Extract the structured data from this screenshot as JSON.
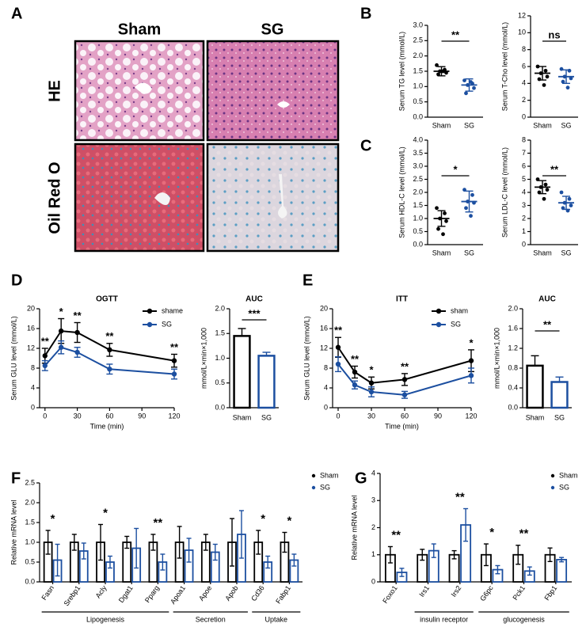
{
  "figure": {
    "panel_labels": [
      "A",
      "B",
      "C",
      "D",
      "E",
      "F",
      "G"
    ],
    "histology": {
      "columns": [
        "Sham",
        "SG"
      ],
      "rows": [
        "HE",
        "Oil Red O"
      ]
    }
  },
  "chart_data": [
    {
      "type": "dotplot",
      "y_label": "Serum TG level (mmol/L)",
      "categories": [
        "Sham",
        "SG"
      ],
      "colors": [
        "#000000",
        "#1c4fa0"
      ],
      "means": [
        1.5,
        1.05
      ],
      "errors": [
        0.15,
        0.2
      ],
      "points": [
        [
          1.7,
          1.55,
          1.5,
          1.45,
          1.4,
          1.5
        ],
        [
          1.2,
          1.1,
          1.05,
          0.95,
          0.78,
          1.15
        ]
      ],
      "significance": "**",
      "ylim": [
        0,
        3
      ],
      "yticks": [
        {
          "value": 0,
          "label": "0.0"
        },
        0.5,
        {
          "value": 1,
          "label": "1.0"
        },
        1.5,
        {
          "value": 2,
          "label": "2.0"
        },
        2.5,
        {
          "value": 3,
          "label": "3.0"
        }
      ]
    },
    {
      "type": "dotplot",
      "y_label": "Serum T-Cho level (mmol/L)",
      "categories": [
        "Sham",
        "SG"
      ],
      "colors": [
        "#000000",
        "#1c4fa0"
      ],
      "means": [
        5.2,
        4.8
      ],
      "errors": [
        0.8,
        0.8
      ],
      "points": [
        [
          6.0,
          5.5,
          5.2,
          4.8,
          4.5,
          3.8
        ],
        [
          5.7,
          5.5,
          4.8,
          4.6,
          4.2,
          3.5
        ]
      ],
      "significance": "ns",
      "ylim": [
        0,
        12
      ],
      "yticks": [
        0,
        2,
        4,
        6,
        8,
        10,
        12
      ]
    },
    {
      "type": "dotplot",
      "y_label": "Serum HDL-C level (mmol/L)",
      "categories": [
        "Sham",
        "SG"
      ],
      "colors": [
        "#000000",
        "#1c4fa0"
      ],
      "means": [
        1.0,
        1.65
      ],
      "errors": [
        0.3,
        0.4
      ],
      "points": [
        [
          1.4,
          1.2,
          1.0,
          0.9,
          0.6,
          0.4
        ],
        [
          2.1,
          1.9,
          1.65,
          1.6,
          1.4,
          1.1
        ]
      ],
      "significance": "*",
      "ylim": [
        0,
        4
      ],
      "yticks": [
        {
          "value": 0,
          "label": "0.0"
        },
        0.5,
        {
          "value": 1,
          "label": "1.0"
        },
        1.5,
        {
          "value": 2,
          "label": "2.0"
        },
        2.5,
        {
          "value": 3,
          "label": "3.0"
        },
        3.5,
        {
          "value": 4,
          "label": "4.0"
        }
      ]
    },
    {
      "type": "dotplot",
      "y_label": "Serum LDL-C level (mmol/L)",
      "categories": [
        "Sham",
        "SG"
      ],
      "colors": [
        "#000000",
        "#1c4fa0"
      ],
      "means": [
        4.4,
        3.2
      ],
      "errors": [
        0.5,
        0.5
      ],
      "points": [
        [
          5.0,
          4.6,
          4.4,
          4.2,
          4.0,
          3.5
        ],
        [
          4.0,
          3.5,
          3.2,
          3.0,
          2.8,
          2.6
        ]
      ],
      "significance": "**",
      "ylim": [
        0,
        8
      ],
      "yticks": [
        0,
        1,
        2,
        3,
        4,
        5,
        6,
        7,
        8
      ]
    },
    {
      "type": "line",
      "title": "OGTT",
      "y_label": "Serum GLU level (mmol/L)",
      "x_label": "Time (min)",
      "x": [
        0,
        15,
        30,
        60,
        120
      ],
      "xlim": [
        -5,
        120
      ],
      "xticks": [
        0,
        30,
        60,
        90,
        120
      ],
      "ylim": [
        0,
        20
      ],
      "yticks": [
        0,
        4,
        8,
        12,
        16,
        20
      ],
      "series": [
        {
          "name": "shame",
          "color": "#000000",
          "values": [
            10.5,
            15.5,
            15.2,
            11.7,
            9.5
          ],
          "errors": [
            1.5,
            2.5,
            2.0,
            1.3,
            1.3
          ]
        },
        {
          "name": "SG",
          "color": "#1c4fa0",
          "values": [
            8.5,
            12.2,
            11.2,
            7.8,
            6.8
          ],
          "errors": [
            1.0,
            1.3,
            1.0,
            1.0,
            1.0
          ]
        }
      ],
      "annotations": [
        "**",
        "*",
        "**",
        "**",
        "**"
      ]
    },
    {
      "type": "bar",
      "title": "AUC",
      "y_label": "mmol/L×min×1,000",
      "categories": [
        "Sham",
        "SG"
      ],
      "colors": [
        "#000000",
        "#1c4fa0"
      ],
      "values": [
        1.45,
        1.05
      ],
      "errors": [
        0.15,
        0.07
      ],
      "significance": "***",
      "ylim": [
        0,
        2
      ],
      "yticks": [
        {
          "value": 0,
          "label": "0.0"
        },
        0.5,
        {
          "value": 1,
          "label": "1.0"
        },
        1.5,
        {
          "value": 2,
          "label": "2.0"
        }
      ]
    },
    {
      "type": "line",
      "title": "ITT",
      "y_label": "Serum GLU level (mmol/L)",
      "x_label": "Time (min)",
      "x": [
        0,
        15,
        30,
        60,
        120
      ],
      "xlim": [
        -5,
        120
      ],
      "xticks": [
        0,
        30,
        60,
        90,
        120
      ],
      "ylim": [
        0,
        20
      ],
      "yticks": [
        0,
        4,
        8,
        12,
        16,
        20
      ],
      "series": [
        {
          "name": "sham",
          "color": "#000000",
          "values": [
            12.2,
            7.2,
            5.0,
            5.7,
            9.5
          ],
          "errors": [
            2.0,
            1.2,
            1.2,
            1.2,
            2.2
          ]
        },
        {
          "name": "SG",
          "color": "#1c4fa0",
          "values": [
            8.8,
            4.6,
            3.2,
            2.6,
            6.5
          ],
          "errors": [
            1.5,
            0.8,
            1.0,
            0.7,
            1.5
          ]
        }
      ],
      "annotations": [
        "**",
        "**",
        "*",
        "**",
        "*"
      ]
    },
    {
      "type": "bar",
      "title": "AUC",
      "y_label": "mmol/L×min×1,000",
      "categories": [
        "Sham",
        "SG"
      ],
      "colors": [
        "#000000",
        "#1c4fa0"
      ],
      "values": [
        0.85,
        0.52
      ],
      "errors": [
        0.2,
        0.1
      ],
      "significance": "**",
      "ylim": [
        0,
        2
      ],
      "yticks": [
        {
          "value": 0,
          "label": "0.0"
        },
        0.4,
        0.8,
        1.2,
        1.6,
        {
          "value": 2,
          "label": "2.0"
        }
      ]
    },
    {
      "type": "grouped_bar",
      "y_label": "Relative mRNA level",
      "categories": [
        "Fasn",
        "Srebp1",
        "Acly",
        "Dgat1",
        "Pparg",
        "Apoa1",
        "Apoe",
        "Apob",
        "Cd36",
        "Fabp1"
      ],
      "series": [
        {
          "name": "Sham",
          "color": "#000000",
          "values": [
            1,
            1,
            1,
            1,
            1,
            1,
            1,
            1,
            1,
            1
          ],
          "errors": [
            0.3,
            0.2,
            0.45,
            0.15,
            0.2,
            0.4,
            0.2,
            0.6,
            0.3,
            0.25
          ]
        },
        {
          "name": "SG",
          "color": "#1c4fa0",
          "values": [
            0.55,
            0.78,
            0.5,
            0.85,
            0.5,
            0.8,
            0.75,
            1.2,
            0.5,
            0.55
          ],
          "errors": [
            0.4,
            0.2,
            0.15,
            0.5,
            0.2,
            0.3,
            0.2,
            0.6,
            0.15,
            0.15
          ]
        }
      ],
      "significance": [
        "*",
        null,
        "*",
        null,
        "**",
        null,
        null,
        null,
        "*",
        "*"
      ],
      "groups": [
        {
          "label": "Lipogenesis",
          "first": "Fasn",
          "last": "Pparg"
        },
        {
          "label": "Secretion",
          "first": "Apoa1",
          "last": "Apob"
        },
        {
          "label": "Uptake",
          "first": "Cd36",
          "last": "Fabp1"
        }
      ],
      "ylim": [
        0,
        2.5
      ],
      "yticks": [
        {
          "value": 0,
          "label": "0.0"
        },
        0.5,
        {
          "value": 1,
          "label": "1.0"
        },
        1.5,
        {
          "value": 2,
          "label": "2.0"
        },
        2.5
      ]
    },
    {
      "type": "grouped_bar",
      "y_label": "Relative mRNA level",
      "categories": [
        "Foxo1",
        "Irs1",
        "Irs2",
        "G6pc",
        "Pck1",
        "Fbp1"
      ],
      "series": [
        {
          "name": "Sham",
          "color": "#000000",
          "values": [
            1,
            1,
            1,
            1,
            1,
            1
          ],
          "errors": [
            0.3,
            0.2,
            0.15,
            0.4,
            0.35,
            0.25
          ]
        },
        {
          "name": "SG",
          "color": "#1c4fa0",
          "values": [
            0.35,
            1.15,
            2.1,
            0.45,
            0.4,
            0.82
          ],
          "errors": [
            0.15,
            0.25,
            0.6,
            0.15,
            0.15,
            0.08
          ]
        }
      ],
      "significance": [
        "**",
        null,
        "**",
        "*",
        "**",
        null
      ],
      "groups": [
        {
          "label": "insulin receptor",
          "first": "Irs1",
          "last": "Irs2"
        },
        {
          "label": "glucogenesis",
          "first": "G6pc",
          "last": "Fbp1"
        }
      ],
      "ylim": [
        0,
        4
      ],
      "yticks": [
        0,
        1,
        2,
        3,
        4
      ]
    }
  ]
}
